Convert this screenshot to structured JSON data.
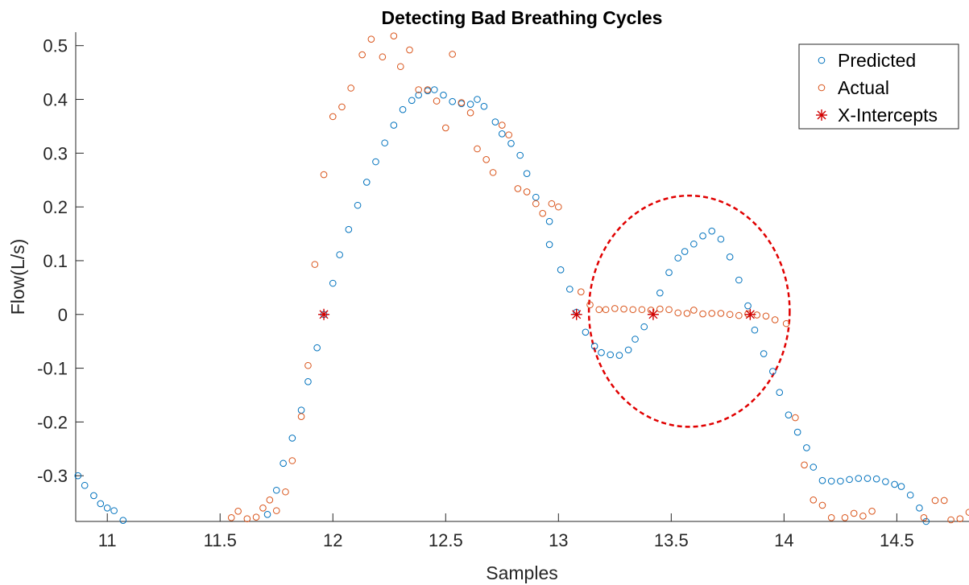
{
  "chart_data": {
    "type": "scatter",
    "title": "Detecting Bad Breathing Cycles",
    "xlabel": "Samples",
    "ylabel": "Flow(L/s)",
    "xlim": [
      10.86,
      14.82
    ],
    "ylim": [
      -0.385,
      0.525
    ],
    "x_ticks": [
      11,
      11.5,
      12,
      12.5,
      13,
      13.5,
      14,
      14.5
    ],
    "x_tick_labels": [
      "11",
      "11.5",
      "12",
      "12.5",
      "13",
      "13.5",
      "14",
      "14.5"
    ],
    "y_ticks": [
      0.5,
      0.4,
      0.3,
      0.2,
      0.1,
      0,
      -0.1,
      -0.2,
      -0.3
    ],
    "y_tick_labels": [
      "0.5",
      "0.4",
      "0.3",
      "0.2",
      "0.1",
      "0",
      "-0.1",
      "-0.2",
      "-0.3"
    ],
    "grid": false,
    "legend_position": "top-right",
    "series": [
      {
        "name": "Predicted",
        "marker": "circle",
        "color": "#0072BD",
        "points": [
          [
            10.87,
            -0.3
          ],
          [
            10.9,
            -0.318
          ],
          [
            10.94,
            -0.337
          ],
          [
            10.97,
            -0.352
          ],
          [
            11.0,
            -0.36
          ],
          [
            11.03,
            -0.365
          ],
          [
            11.07,
            -0.383
          ],
          [
            11.71,
            -0.372
          ],
          [
            11.75,
            -0.327
          ],
          [
            11.78,
            -0.277
          ],
          [
            11.82,
            -0.23
          ],
          [
            11.86,
            -0.178
          ],
          [
            11.89,
            -0.125
          ],
          [
            11.93,
            -0.062
          ],
          [
            11.96,
            0.0
          ],
          [
            12.0,
            0.058
          ],
          [
            12.03,
            0.111
          ],
          [
            12.07,
            0.158
          ],
          [
            12.11,
            0.203
          ],
          [
            12.15,
            0.246
          ],
          [
            12.19,
            0.284
          ],
          [
            12.23,
            0.319
          ],
          [
            12.27,
            0.352
          ],
          [
            12.31,
            0.381
          ],
          [
            12.35,
            0.398
          ],
          [
            12.38,
            0.408
          ],
          [
            12.42,
            0.416
          ],
          [
            12.45,
            0.418
          ],
          [
            12.49,
            0.408
          ],
          [
            12.53,
            0.396
          ],
          [
            12.57,
            0.392
          ],
          [
            12.61,
            0.391
          ],
          [
            12.64,
            0.4
          ],
          [
            12.67,
            0.387
          ],
          [
            12.72,
            0.358
          ],
          [
            12.75,
            0.336
          ],
          [
            12.79,
            0.318
          ],
          [
            12.83,
            0.296
          ],
          [
            12.86,
            0.262
          ],
          [
            12.9,
            0.218
          ],
          [
            12.96,
            0.173
          ],
          [
            12.96,
            0.13
          ],
          [
            13.01,
            0.083
          ],
          [
            13.05,
            0.047
          ],
          [
            13.08,
            0.004
          ],
          [
            13.12,
            -0.033
          ],
          [
            13.16,
            -0.059
          ],
          [
            13.19,
            -0.071
          ],
          [
            13.23,
            -0.075
          ],
          [
            13.27,
            -0.076
          ],
          [
            13.31,
            -0.066
          ],
          [
            13.34,
            -0.046
          ],
          [
            13.38,
            -0.023
          ],
          [
            13.45,
            0.04
          ],
          [
            13.49,
            0.078
          ],
          [
            13.53,
            0.105
          ],
          [
            13.56,
            0.117
          ],
          [
            13.6,
            0.131
          ],
          [
            13.64,
            0.146
          ],
          [
            13.68,
            0.155
          ],
          [
            13.72,
            0.14
          ],
          [
            13.76,
            0.107
          ],
          [
            13.8,
            0.064
          ],
          [
            13.84,
            0.016
          ],
          [
            13.87,
            -0.029
          ],
          [
            13.91,
            -0.073
          ],
          [
            13.95,
            -0.106
          ],
          [
            13.98,
            -0.145
          ],
          [
            14.02,
            -0.187
          ],
          [
            14.06,
            -0.219
          ],
          [
            14.1,
            -0.248
          ],
          [
            14.13,
            -0.284
          ],
          [
            14.17,
            -0.309
          ],
          [
            14.21,
            -0.31
          ],
          [
            14.25,
            -0.31
          ],
          [
            14.29,
            -0.307
          ],
          [
            14.33,
            -0.305
          ],
          [
            14.37,
            -0.305
          ],
          [
            14.41,
            -0.306
          ],
          [
            14.45,
            -0.311
          ],
          [
            14.49,
            -0.316
          ],
          [
            14.52,
            -0.32
          ],
          [
            14.56,
            -0.336
          ],
          [
            14.6,
            -0.36
          ],
          [
            14.63,
            -0.385
          ]
        ]
      },
      {
        "name": "Actual",
        "marker": "circle",
        "color": "#D95319",
        "points": [
          [
            11.55,
            -0.378
          ],
          [
            11.58,
            -0.366
          ],
          [
            11.62,
            -0.38
          ],
          [
            11.66,
            -0.377
          ],
          [
            11.69,
            -0.36
          ],
          [
            11.72,
            -0.345
          ],
          [
            11.75,
            -0.365
          ],
          [
            11.79,
            -0.33
          ],
          [
            11.82,
            -0.272
          ],
          [
            11.86,
            -0.19
          ],
          [
            11.89,
            -0.095
          ],
          [
            11.92,
            0.093
          ],
          [
            11.96,
            0.26
          ],
          [
            12.0,
            0.368
          ],
          [
            12.04,
            0.386
          ],
          [
            12.08,
            0.421
          ],
          [
            12.13,
            0.483
          ],
          [
            12.17,
            0.512
          ],
          [
            12.22,
            0.479
          ],
          [
            12.27,
            0.518
          ],
          [
            12.3,
            0.461
          ],
          [
            12.34,
            0.492
          ],
          [
            12.38,
            0.418
          ],
          [
            12.42,
            0.418
          ],
          [
            12.46,
            0.397
          ],
          [
            12.5,
            0.347
          ],
          [
            12.53,
            0.484
          ],
          [
            12.57,
            0.394
          ],
          [
            12.61,
            0.375
          ],
          [
            12.64,
            0.308
          ],
          [
            12.68,
            0.288
          ],
          [
            12.71,
            0.264
          ],
          [
            12.75,
            0.352
          ],
          [
            12.78,
            0.334
          ],
          [
            12.82,
            0.234
          ],
          [
            12.86,
            0.228
          ],
          [
            12.9,
            0.206
          ],
          [
            12.93,
            0.188
          ],
          [
            12.97,
            0.206
          ],
          [
            13.0,
            0.2
          ],
          [
            13.1,
            0.042
          ],
          [
            13.14,
            0.018
          ],
          [
            13.18,
            0.009
          ],
          [
            13.21,
            0.009
          ],
          [
            13.25,
            0.011
          ],
          [
            13.29,
            0.01
          ],
          [
            13.33,
            0.009
          ],
          [
            13.37,
            0.009
          ],
          [
            13.41,
            0.008
          ],
          [
            13.45,
            0.01
          ],
          [
            13.49,
            0.009
          ],
          [
            13.53,
            0.003
          ],
          [
            13.57,
            0.002
          ],
          [
            13.6,
            0.008
          ],
          [
            13.64,
            0.001
          ],
          [
            13.68,
            0.002
          ],
          [
            13.72,
            0.002
          ],
          [
            13.76,
            0.0
          ],
          [
            13.8,
            -0.002
          ],
          [
            13.84,
            0.001
          ],
          [
            13.88,
            -0.001
          ],
          [
            13.92,
            -0.003
          ],
          [
            13.96,
            -0.01
          ],
          [
            14.01,
            -0.017
          ],
          [
            14.05,
            -0.192
          ],
          [
            14.09,
            -0.28
          ],
          [
            14.13,
            -0.345
          ],
          [
            14.17,
            -0.355
          ],
          [
            14.21,
            -0.378
          ],
          [
            14.27,
            -0.378
          ],
          [
            14.31,
            -0.37
          ],
          [
            14.35,
            -0.375
          ],
          [
            14.39,
            -0.366
          ],
          [
            14.62,
            -0.378
          ],
          [
            14.67,
            -0.346
          ],
          [
            14.71,
            -0.346
          ],
          [
            14.74,
            -0.382
          ],
          [
            14.78,
            -0.38
          ],
          [
            14.82,
            -0.368
          ]
        ]
      },
      {
        "name": "X-Intercepts",
        "marker": "asterisk",
        "color": "#D00000",
        "points": [
          [
            11.96,
            0.0
          ],
          [
            13.08,
            0.0
          ],
          [
            13.42,
            0.0
          ],
          [
            13.85,
            0.0
          ]
        ]
      }
    ],
    "annotations": [
      {
        "type": "dashed-ellipse",
        "color": "#E00000",
        "center": [
          13.58,
          0.006
        ],
        "radius_x": 0.445,
        "radius_y": 0.215
      }
    ]
  }
}
